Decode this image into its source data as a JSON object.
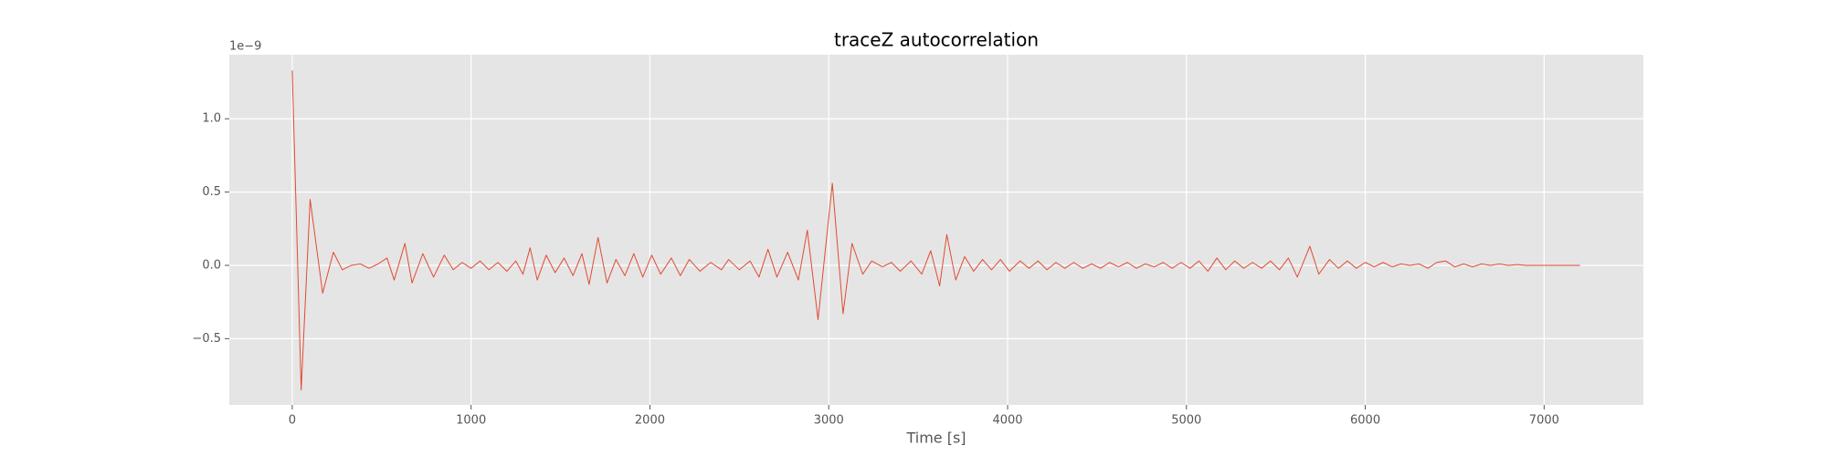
{
  "chart_data": {
    "type": "line",
    "title": "traceZ autocorrelation",
    "x_label": "Time [s]",
    "y_offset_label": "1e−9",
    "color": "#E24A33",
    "grid": true,
    "background": "#E5E5E5",
    "xlim": [
      -352,
      7555
    ],
    "ylim": [
      -0.952,
      1.437
    ],
    "xticks": [
      0,
      1000,
      2000,
      3000,
      4000,
      5000,
      6000,
      7000
    ],
    "yticks": [
      {
        "value": -0.5,
        "label": "−0.5"
      },
      {
        "value": 0,
        "label": "0.0"
      },
      {
        "value": 0.5,
        "label": "0.5"
      },
      {
        "value": 1,
        "label": "1.0"
      }
    ],
    "x": [
      0,
      50,
      100,
      170,
      230,
      280,
      330,
      380,
      430,
      480,
      530,
      570,
      630,
      670,
      730,
      790,
      850,
      900,
      950,
      1000,
      1050,
      1100,
      1150,
      1200,
      1250,
      1290,
      1330,
      1370,
      1420,
      1470,
      1520,
      1570,
      1620,
      1660,
      1710,
      1760,
      1810,
      1860,
      1910,
      1960,
      2010,
      2060,
      2120,
      2170,
      2220,
      2280,
      2340,
      2400,
      2440,
      2500,
      2560,
      2610,
      2660,
      2710,
      2770,
      2830,
      2880,
      2940,
      3020,
      3080,
      3130,
      3190,
      3240,
      3300,
      3350,
      3400,
      3460,
      3520,
      3570,
      3620,
      3660,
      3710,
      3760,
      3810,
      3860,
      3910,
      3960,
      4010,
      4070,
      4120,
      4170,
      4220,
      4270,
      4320,
      4370,
      4420,
      4470,
      4520,
      4570,
      4620,
      4670,
      4720,
      4770,
      4820,
      4870,
      4920,
      4970,
      5020,
      5070,
      5120,
      5170,
      5220,
      5270,
      5320,
      5370,
      5420,
      5470,
      5520,
      5570,
      5620,
      5690,
      5740,
      5800,
      5850,
      5900,
      5950,
      6000,
      6050,
      6100,
      6150,
      6200,
      6250,
      6300,
      6350,
      6400,
      6450,
      6500,
      6550,
      6600,
      6650,
      6700,
      6750,
      6800,
      6850,
      6900,
      7000,
      7100,
      7200
    ],
    "values": [
      1.33,
      -0.85,
      0.45,
      -0.19,
      0.09,
      -0.03,
      0.0,
      0.01,
      -0.02,
      0.01,
      0.05,
      -0.1,
      0.15,
      -0.12,
      0.08,
      -0.08,
      0.07,
      -0.03,
      0.02,
      -0.02,
      0.03,
      -0.03,
      0.02,
      -0.04,
      0.03,
      -0.06,
      0.12,
      -0.1,
      0.07,
      -0.05,
      0.05,
      -0.07,
      0.08,
      -0.13,
      0.19,
      -0.12,
      0.04,
      -0.07,
      0.08,
      -0.08,
      0.07,
      -0.06,
      0.05,
      -0.07,
      0.04,
      -0.04,
      0.02,
      -0.03,
      0.04,
      -0.03,
      0.03,
      -0.08,
      0.11,
      -0.08,
      0.09,
      -0.1,
      0.24,
      -0.37,
      0.56,
      -0.33,
      0.15,
      -0.06,
      0.03,
      -0.01,
      0.02,
      -0.04,
      0.03,
      -0.06,
      0.1,
      -0.14,
      0.21,
      -0.1,
      0.06,
      -0.04,
      0.04,
      -0.03,
      0.04,
      -0.04,
      0.03,
      -0.02,
      0.03,
      -0.03,
      0.02,
      -0.02,
      0.02,
      -0.02,
      0.01,
      -0.02,
      0.02,
      -0.01,
      0.02,
      -0.02,
      0.01,
      -0.01,
      0.02,
      -0.02,
      0.02,
      -0.02,
      0.03,
      -0.04,
      0.05,
      -0.03,
      0.03,
      -0.02,
      0.02,
      -0.02,
      0.03,
      -0.03,
      0.05,
      -0.08,
      0.13,
      -0.06,
      0.04,
      -0.02,
      0.03,
      -0.02,
      0.02,
      -0.01,
      0.02,
      -0.01,
      0.01,
      0,
      0.01,
      -0.02,
      0.02,
      0.03,
      -0.01,
      0.01,
      -0.01,
      0.01,
      0,
      0.01,
      0,
      0.005,
      0,
      0,
      0,
      0
    ]
  }
}
